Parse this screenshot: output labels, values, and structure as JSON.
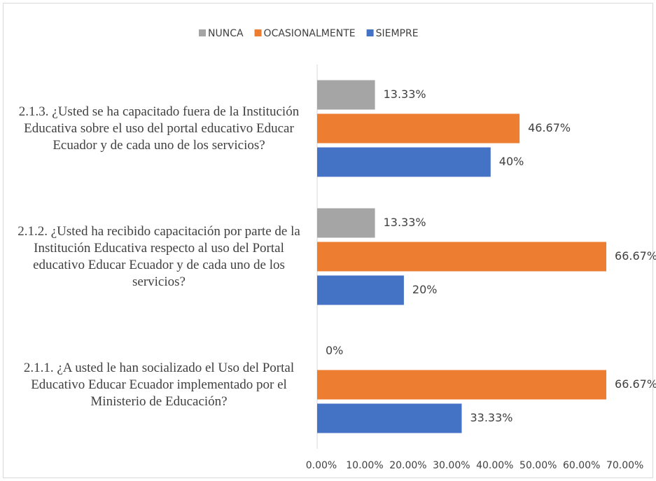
{
  "chart_data": {
    "type": "barh",
    "categories": [
      "2.1.3. ¿Usted se ha capacitado fuera de la Institución Educativa sobre el uso del portal educativo Educar Ecuador y de cada uno de los servicios?",
      "2.1.2. ¿Usted ha recibido capacitación por parte de la Institución Educativa respecto al uso del Portal educativo Educar Ecuador y de cada uno de los servicios?",
      "2.1.1. ¿A usted le han socializado el Uso del Portal Educativo Educar Ecuador implementado por el Ministerio de Educación?"
    ],
    "series": [
      {
        "name": "NUNCA",
        "color": "#a5a5a5",
        "values": [
          13.33,
          13.33,
          0
        ],
        "value_labels": [
          "13.33%",
          "13.33%",
          "0%"
        ]
      },
      {
        "name": "OCASIONALMENTE",
        "color": "#ed7d31",
        "values": [
          46.67,
          66.67,
          66.67
        ],
        "value_labels": [
          "46.67%",
          "66.67%",
          "66.67%"
        ]
      },
      {
        "name": "SIEMPRE",
        "color": "#4472c4",
        "values": [
          40,
          20,
          33.33
        ],
        "value_labels": [
          "40%",
          "20%",
          "33.33%"
        ]
      }
    ],
    "xlim": [
      0,
      70
    ],
    "xticks": [
      {
        "value": 0,
        "label": "0.00%"
      },
      {
        "value": 10,
        "label": "10.00%"
      },
      {
        "value": 20,
        "label": "20.00%"
      },
      {
        "value": 30,
        "label": "30.00%"
      },
      {
        "value": 40,
        "label": "40.00%"
      },
      {
        "value": 50,
        "label": "50.00%"
      },
      {
        "value": 60,
        "label": "60.00%"
      },
      {
        "value": 70,
        "label": "70.00%"
      }
    ],
    "legend": "top",
    "grid": false
  }
}
